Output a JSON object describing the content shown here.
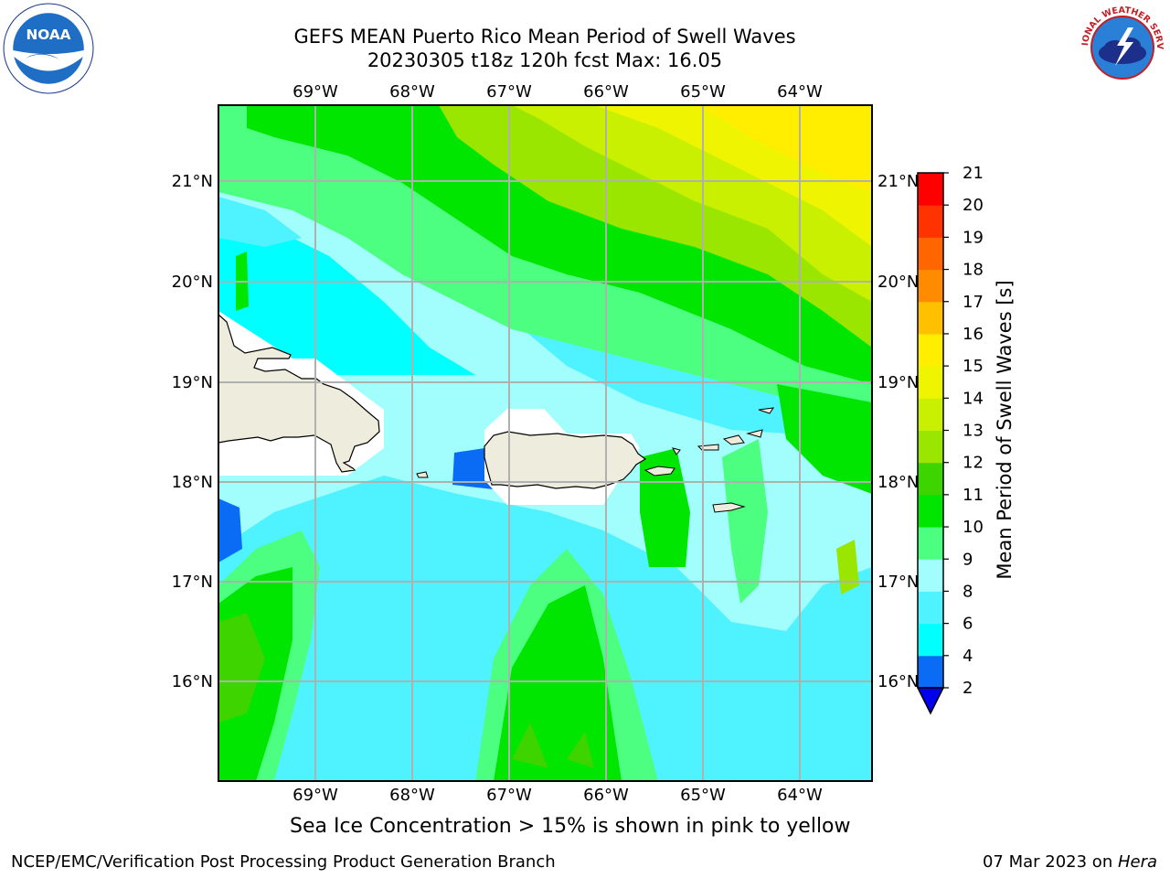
{
  "title": {
    "line1": "GEFS MEAN Puerto Rico Mean Period of Swell Waves",
    "line2": "20230305 t18z 120h fcst   Max: 16.05"
  },
  "map": {
    "lon_ticks": [
      "69°W",
      "68°W",
      "67°W",
      "66°W",
      "65°W",
      "64°W"
    ],
    "lat_ticks": [
      "21°N",
      "20°N",
      "19°N",
      "18°N",
      "17°N",
      "16°N"
    ],
    "land_color": "#eeecdc",
    "grid_color": "#b0b0b0",
    "islands": [
      "Hispaniola",
      "Puerto Rico",
      "Vieques",
      "Culebra",
      "Virgin Islands",
      "St. Croix"
    ]
  },
  "colorbar": {
    "label": "Mean Period of Swell Waves [s]",
    "tick_labels": [
      "2",
      "4",
      "6",
      "8",
      "9",
      "10",
      "11",
      "12",
      "13",
      "14",
      "15",
      "16",
      "17",
      "18",
      "19",
      "20",
      "21"
    ],
    "under_color": "#0000ee",
    "colors": [
      "#0a6bf5",
      "#00ffff",
      "#4ff2ff",
      "#a2fdfd",
      "#4dff80",
      "#00e600",
      "#3dd400",
      "#9ae600",
      "#c8f000",
      "#eff500",
      "#ffee00",
      "#ffc000",
      "#ff8c00",
      "#ff6600",
      "#ff3300",
      "#ff0000"
    ]
  },
  "note": "Sea Ice Concentration > 15% is shown in pink to yellow",
  "footer": {
    "left": "NCEP/EMC/Verification Post Processing Product Generation Branch",
    "right_date": "07 Mar 2023 on ",
    "right_host": "Hera"
  },
  "logos": {
    "noaa_text": "NOAA",
    "nws_text": "NATIONAL WEATHER SERVICE"
  }
}
